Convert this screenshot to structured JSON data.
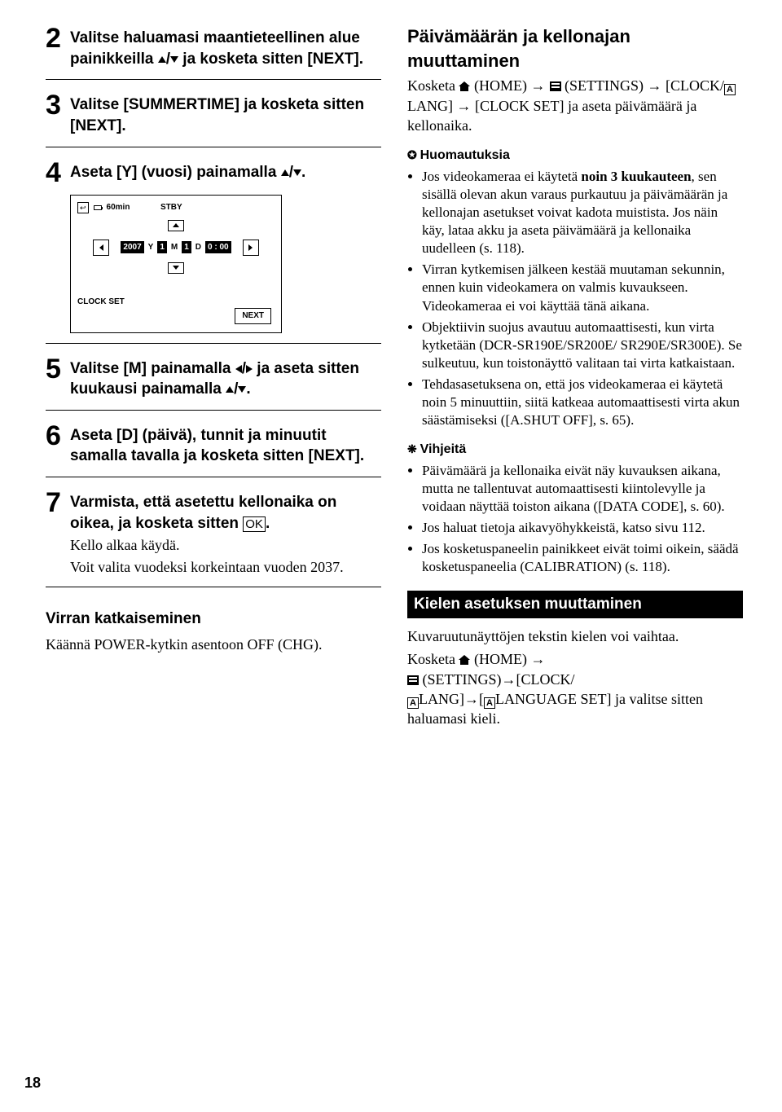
{
  "pageNumber": "18",
  "left": {
    "steps": [
      {
        "num": "2",
        "title": "Valitse haluamasi maantieteellinen alue painikkeilla ",
        "tail": " ja kosketa sitten [NEXT]."
      },
      {
        "num": "3",
        "title": "Valitse [SUMMERTIME] ja kosketa sitten [NEXT]."
      },
      {
        "num": "4",
        "title": "Aseta [Y] (vuosi) painamalla ",
        "tail": "."
      },
      {
        "num": "5",
        "title": "Valitse [M] painamalla ",
        "tail": " ja aseta sitten kuukausi painamalla ",
        "tail2": "."
      },
      {
        "num": "6",
        "title": "Aseta [D] (päivä), tunnit ja minuutit samalla tavalla ja kosketa sitten [NEXT]."
      },
      {
        "num": "7",
        "title": "Varmista, että asetettu kellonaika on oikea, ja kosketa sitten ",
        "oklabel": "OK",
        "tail": ".",
        "p1": "Kello alkaa käydä.",
        "p2": "Voit valita vuodeksi korkeintaan vuoden 2037."
      }
    ],
    "lcd": {
      "min": "60min",
      "stby": "STBY",
      "year": "2007",
      "y": "Y",
      "m": "1",
      "ml": "M",
      "d": "1",
      "dl": "D",
      "time": "0 : 00",
      "clockset": "CLOCK SET",
      "next": "NEXT"
    },
    "powerHead": "Virran katkaiseminen",
    "powerText": "Käännä POWER-kytkin asentoon OFF (CHG)."
  },
  "right": {
    "dateHead": "Päivämäärän ja kellonajan muuttaminen",
    "dateP1a": "Kosketa ",
    "dateP1b": " (HOME) ",
    "dateP1c": " (SETTINGS) ",
    "dateP1d": " [CLOCK/",
    "dateP1e": "LANG] ",
    "dateP1f": " [CLOCK SET] ja aseta päivämäärä ja kellonaika.",
    "notesHead": "Huomautuksia",
    "notes": [
      "Jos videokameraa ei käytetä <b>noin 3 kuukauteen</b>, sen sisällä olevan akun varaus purkautuu ja päivämäärän ja kellonajan asetukset voivat kadota muistista. Jos näin käy, lataa akku ja aseta päivämäärä ja kellonaika uudelleen (s. 118).",
      "Virran kytkemisen jälkeen kestää muutaman sekunnin, ennen kuin videokamera on valmis kuvaukseen. Videokameraa ei voi käyttää tänä aikana.",
      "Objektiivin suojus avautuu automaattisesti, kun virta kytketään (DCR-SR190E/SR200E/ SR290E/SR300E). Se sulkeutuu, kun toistonäyttö valitaan tai virta katkaistaan.",
      "Tehdasasetuksena on, että jos videokameraa ei käytetä noin 5 minuuttiin, siitä katkeaa automaattisesti virta akun säästämiseksi ([A.SHUT OFF], s. 65)."
    ],
    "tipsHead": "Vihjeitä",
    "tips": [
      "Päivämäärä ja kellonaika eivät näy kuvauksen aikana, mutta ne tallentuvat automaattisesti kiintolevylle ja voidaan näyttää toiston aikana ([DATA CODE], s. 60).",
      "Jos haluat tietoja aikavyöhykkeistä, katso sivu 112.",
      "Jos kosketuspaneelin painikkeet eivät toimi oikein, säädä kosketuspaneelia (CALIBRATION) (s. 118)."
    ],
    "langBar": "Kielen asetuksen muuttaminen",
    "langP1": "Kuvaruutunäyttöjen tekstin kielen voi vaihtaa.",
    "langK": "Kosketa ",
    "langHome": "(HOME) ",
    "langSet": "(SETTINGS)",
    "langClock": "[CLOCK/ ",
    "langLang": "LANG]",
    "langLangSet": "LANGUAGE SET] ja valitse sitten haluamasi kieli.",
    "aLabel": "A"
  }
}
